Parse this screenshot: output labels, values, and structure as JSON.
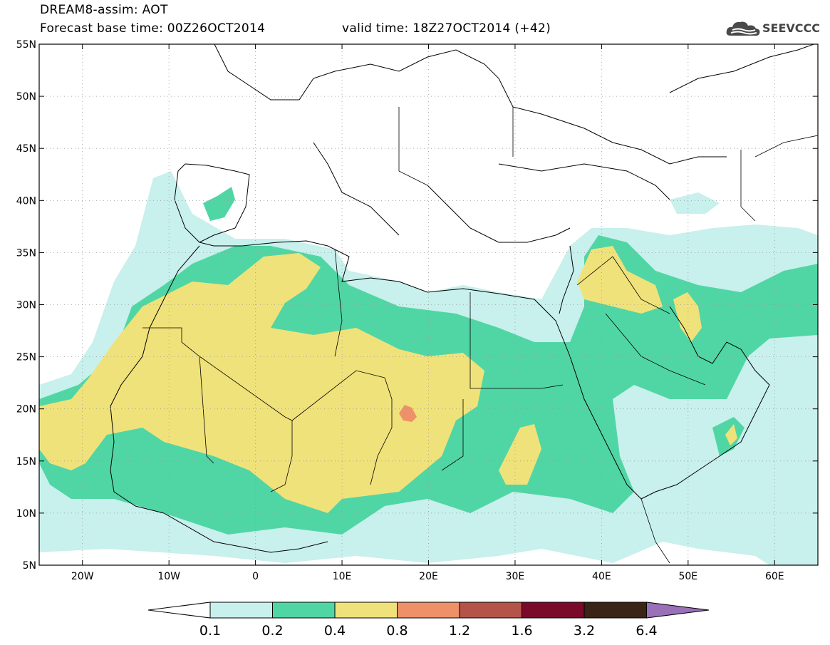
{
  "title": {
    "line1": "DREAM8-assim: AOT",
    "line2": "Forecast base time: 00Z26OCT2014",
    "valid": "valid time: 18Z27OCT2014 (+42)"
  },
  "logo": {
    "text": "SEEVCCC",
    "icon": "cloud-icon"
  },
  "map": {
    "lon_range": [
      -25,
      65
    ],
    "lat_range": [
      5,
      55
    ],
    "lat_labels": [
      "55N",
      "50N",
      "45N",
      "40N",
      "35N",
      "30N",
      "25N",
      "20N",
      "15N",
      "10N",
      "5N"
    ],
    "lat_values": [
      55,
      50,
      45,
      40,
      35,
      30,
      25,
      20,
      15,
      10,
      5
    ],
    "lon_labels": [
      "20W",
      "10W",
      "0",
      "10E",
      "20E",
      "30E",
      "40E",
      "50E",
      "60E"
    ],
    "lon_values": [
      -20,
      -10,
      0,
      10,
      20,
      30,
      40,
      50,
      60
    ]
  },
  "colorbar": {
    "labels": [
      "0.1",
      "0.2",
      "0.4",
      "0.8",
      "1.2",
      "1.6",
      "3.2",
      "6.4"
    ],
    "colors": [
      "#c8f0ec",
      "#50d6a4",
      "#f0e27a",
      "#ee9068",
      "#b45448",
      "#7a0a2a",
      "#3a2416"
    ],
    "under_color": "#ffffff",
    "over_color": "#9a70b8"
  }
}
